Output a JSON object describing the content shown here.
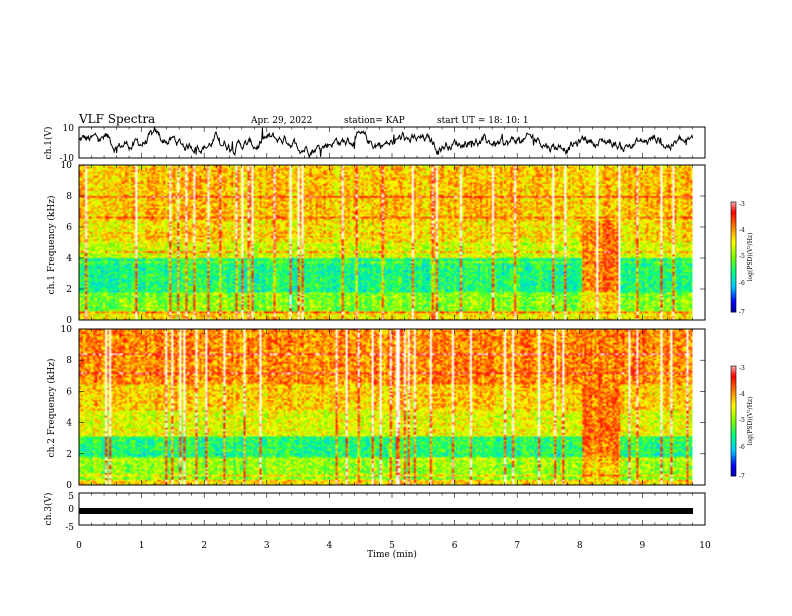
{
  "header": {
    "title": "VLF Spectra",
    "date": "Apr. 29, 2022",
    "station": "station= KAP",
    "start_ut": "start  UT =   18: 10: 1"
  },
  "chart_data": [
    {
      "type": "line",
      "panel": "ch1",
      "ylabel": "ch.1(V)",
      "ylim": [
        -10,
        10
      ],
      "yticks": [
        "10",
        "-10"
      ],
      "xlim": [
        0,
        10
      ],
      "data_span_min": [
        0,
        9.8
      ],
      "description_values": "noisy voltage trace oscillating roughly between -5 and 5 V"
    },
    {
      "type": "heatmap",
      "panel": "ch1-spectrogram",
      "ylabel": "ch.1  Frequency  (kHz)",
      "ylim": [
        0,
        10
      ],
      "yticks": [
        "0",
        "2",
        "4",
        "6",
        "8",
        "10"
      ],
      "xlim": [
        0,
        10
      ],
      "colorbar": {
        "label": "log(PSD)(V²/Hz)",
        "range": [
          -7,
          -3
        ],
        "ticks": [
          "-3",
          "-4",
          "-5",
          "-6",
          "-7"
        ]
      }
    },
    {
      "type": "heatmap",
      "panel": "ch2-spectrogram",
      "ylabel": "ch.2  Frequency  (kHz)",
      "ylim": [
        0,
        10
      ],
      "yticks": [
        "0",
        "2",
        "4",
        "6",
        "8",
        "10"
      ],
      "xlim": [
        0,
        10
      ],
      "colorbar": {
        "label": "log(PSD)(V²/Hz)",
        "range": [
          -7,
          -3
        ],
        "ticks": [
          "-3",
          "-4",
          "-5",
          "-6",
          "-7"
        ]
      }
    },
    {
      "type": "line",
      "panel": "ch3",
      "ylabel": "ch.3(V)",
      "ylim": [
        -5,
        5
      ],
      "yticks": [
        "5",
        "0",
        "-5"
      ],
      "xlim": [
        0,
        10
      ],
      "data_span_min": [
        0,
        9.8
      ]
    }
  ],
  "xaxis": {
    "label": "Time  (min)",
    "ticks": [
      "0",
      "1",
      "2",
      "3",
      "4",
      "5",
      "6",
      "7",
      "8",
      "9",
      "10"
    ]
  },
  "colors": {
    "trace": "#000000",
    "colormap": [
      "#000080",
      "#0000ff",
      "#00c8ff",
      "#00ff80",
      "#80ff00",
      "#ffff00",
      "#ff8000",
      "#ff0000",
      "#ffffff"
    ]
  }
}
